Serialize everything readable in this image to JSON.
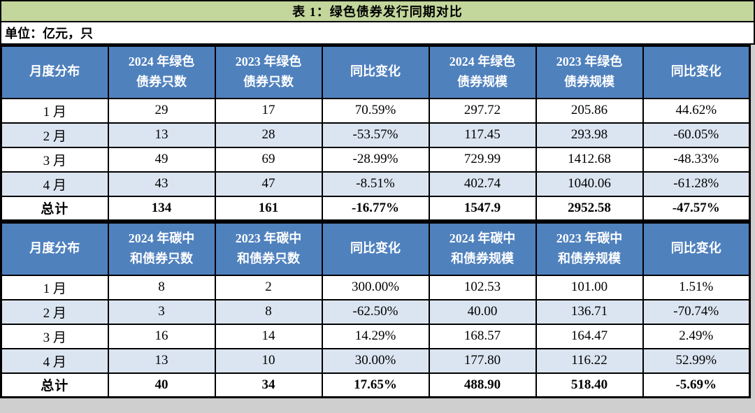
{
  "title": "表 1：绿色债券发行同期对比",
  "unit_label": "单位：亿元，只",
  "colors": {
    "title_bar_green": "#c3d69b",
    "header_blue": "#4f81bd",
    "alt_row_blue": "#dbe5f1",
    "border_black": "#000000",
    "header_text": "#ffffff"
  },
  "chart_data": [
    {
      "type": "table",
      "title": "绿色债券发行同期对比",
      "columns": [
        "月度分布",
        "2024 年绿色\n债券只数",
        "2023 年绿色\n债券只数",
        "同比变化",
        "2024 年绿色\n债券规模",
        "2023 年绿色\n债券规模",
        "同比变化"
      ],
      "rows": [
        [
          "1 月",
          "29",
          "17",
          "70.59%",
          "297.72",
          "205.86",
          "44.62%"
        ],
        [
          "2 月",
          "13",
          "28",
          "-53.57%",
          "117.45",
          "293.98",
          "-60.05%"
        ],
        [
          "3 月",
          "49",
          "69",
          "-28.99%",
          "729.99",
          "1412.68",
          "-48.33%"
        ],
        [
          "4 月",
          "43",
          "47",
          "-8.51%",
          "402.74",
          "1040.06",
          "-61.28%"
        ]
      ],
      "total_row": [
        "总计",
        "134",
        "161",
        "-16.77%",
        "1547.9",
        "2952.58",
        "-47.57%"
      ]
    },
    {
      "type": "table",
      "title": "碳中和债券发行同期对比",
      "columns": [
        "月度分布",
        "2024 年碳中\n和债券只数",
        "2023 年碳中\n和债券只数",
        "同比变化",
        "2024 年碳中\n和债券规模",
        "2023 年碳中\n和债券规模",
        "同比变化"
      ],
      "rows": [
        [
          "1 月",
          "8",
          "2",
          "300.00%",
          "102.53",
          "101.00",
          "1.51%"
        ],
        [
          "2 月",
          "3",
          "8",
          "-62.50%",
          "40.00",
          "136.71",
          "-70.74%"
        ],
        [
          "3 月",
          "16",
          "14",
          "14.29%",
          "168.57",
          "164.47",
          "2.49%"
        ],
        [
          "4 月",
          "13",
          "10",
          "30.00%",
          "177.80",
          "116.22",
          "52.99%"
        ]
      ],
      "total_row": [
        "总计",
        "40",
        "34",
        "17.65%",
        "488.90",
        "518.40",
        "-5.69%"
      ]
    }
  ]
}
